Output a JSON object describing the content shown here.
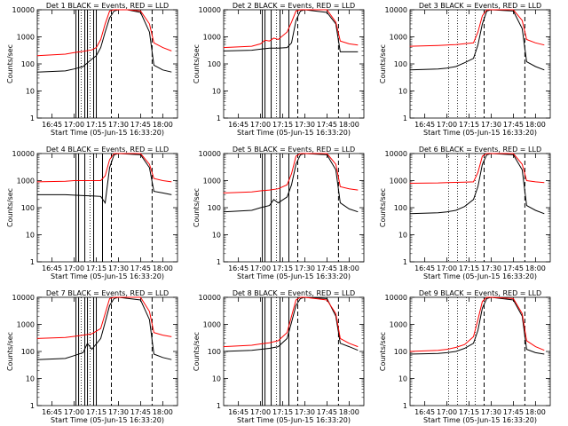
{
  "chart_data": [
    {
      "type": "line",
      "title": "Det 1   BLACK = Events, RED = LLD",
      "xlabel": "Start Time (05-Jun-15 16:33:20)",
      "ylabel": "Counts/sec",
      "yscale": "log",
      "ylim": [
        1,
        10000
      ],
      "xlim": [
        "16:35",
        "18:10"
      ],
      "x_ticks": [
        "16:45",
        "17:00",
        "17:15",
        "17:30",
        "17:45",
        "18:00"
      ],
      "y_ticks": [
        "1",
        "10",
        "100",
        "1000",
        "10000"
      ],
      "series": [
        {
          "name": "Events",
          "color": "#000000",
          "x": [
            16.58,
            16.9,
            17.0,
            17.1,
            17.2,
            17.25,
            17.3,
            17.35,
            17.4,
            17.45,
            17.5,
            17.55,
            17.6,
            17.75,
            17.85,
            17.9,
            18.0,
            18.1
          ],
          "values": [
            50,
            55,
            65,
            80,
            150,
            200,
            400,
            1500,
            5000,
            9000,
            10000,
            10000,
            10000,
            8000,
            1500,
            90,
            60,
            50
          ]
        },
        {
          "name": "LLD",
          "color": "#ff0000",
          "x": [
            16.58,
            16.9,
            17.0,
            17.1,
            17.2,
            17.25,
            17.3,
            17.35,
            17.4,
            17.45,
            17.5,
            17.55,
            17.6,
            17.75,
            17.85,
            17.9,
            18.0,
            18.1
          ],
          "values": [
            200,
            230,
            260,
            290,
            330,
            400,
            800,
            3000,
            9000,
            10000,
            10000,
            10000,
            10000,
            9000,
            3000,
            600,
            400,
            300
          ]
        }
      ],
      "solid_vlines": [
        17.02,
        17.05,
        17.12,
        17.15,
        17.22,
        17.25
      ],
      "dashed_vlines": [
        17.42,
        17.88
      ],
      "dotted_vlines": [
        17.08,
        17.18
      ]
    },
    {
      "type": "line",
      "title": "Det 2   BLACK = Events, RED = LLD",
      "xlabel": "Start Time (05-Jun-15 16:33:20)",
      "ylabel": "Counts/sec",
      "yscale": "log",
      "ylim": [
        1,
        10000
      ],
      "xlim": [
        "16:35",
        "18:10"
      ],
      "x_ticks": [
        "16:45",
        "17:00",
        "17:15",
        "17:30",
        "17:45",
        "18:00"
      ],
      "y_ticks": [
        "1",
        "10",
        "100",
        "1000",
        "10000"
      ],
      "series": [
        {
          "name": "Events",
          "color": "#000000",
          "x": [
            16.58,
            16.9,
            17.0,
            17.1,
            17.2,
            17.3,
            17.35,
            17.4,
            17.45,
            17.5,
            17.75,
            17.85,
            17.9,
            18.0,
            18.1
          ],
          "values": [
            300,
            320,
            350,
            380,
            380,
            400,
            600,
            4000,
            9000,
            10000,
            8000,
            3000,
            280,
            280,
            280
          ]
        },
        {
          "name": "LLD",
          "color": "#ff0000",
          "x": [
            16.58,
            16.9,
            17.0,
            17.05,
            17.1,
            17.15,
            17.2,
            17.3,
            17.35,
            17.4,
            17.45,
            17.5,
            17.75,
            17.85,
            17.9,
            18.0,
            18.1
          ],
          "values": [
            400,
            450,
            550,
            750,
            700,
            900,
            800,
            1500,
            3500,
            9000,
            10000,
            10000,
            10000,
            3500,
            700,
            550,
            500
          ]
        }
      ],
      "solid_vlines": [
        17.02,
        17.05,
        17.12,
        17.22,
        17.32
      ],
      "dashed_vlines": [
        17.42,
        17.88
      ],
      "dotted_vlines": [
        17.18
      ]
    },
    {
      "type": "line",
      "title": "Det 3   BLACK = Events, RED = LLD",
      "xlabel": "Start Time (05-Jun-15 16:33:20)",
      "ylabel": "Counts/sec",
      "yscale": "log",
      "ylim": [
        1,
        10000
      ],
      "xlim": [
        "16:35",
        "18:10"
      ],
      "x_ticks": [
        "16:45",
        "17:00",
        "17:15",
        "17:30",
        "17:45",
        "18:00"
      ],
      "y_ticks": [
        "1",
        "10",
        "100",
        "1000",
        "10000"
      ],
      "series": [
        {
          "name": "Events",
          "color": "#000000",
          "x": [
            16.58,
            16.9,
            17.0,
            17.1,
            17.2,
            17.3,
            17.35,
            17.4,
            17.45,
            17.5,
            17.75,
            17.85,
            17.9,
            18.0,
            18.1
          ],
          "values": [
            60,
            65,
            70,
            80,
            110,
            160,
            500,
            3000,
            9000,
            10000,
            9000,
            2000,
            120,
            80,
            60
          ]
        },
        {
          "name": "LLD",
          "color": "#ff0000",
          "x": [
            16.58,
            16.9,
            17.0,
            17.1,
            17.2,
            17.3,
            17.35,
            17.4,
            17.45,
            17.5,
            17.75,
            17.85,
            17.9,
            18.0,
            18.1
          ],
          "values": [
            450,
            480,
            500,
            520,
            560,
            600,
            1500,
            6000,
            10000,
            10000,
            10000,
            4000,
            800,
            600,
            500
          ]
        }
      ],
      "solid_vlines": [],
      "dashed_vlines": [
        17.42,
        17.88
      ],
      "dotted_vlines": [
        17.02,
        17.12,
        17.22,
        17.32
      ]
    },
    {
      "type": "line",
      "title": "Det 4   BLACK = Events, RED = LLD",
      "xlabel": "Start Time (05-Jun-15 16:33:20)",
      "ylabel": "Counts/sec",
      "yscale": "log",
      "ylim": [
        1,
        10000
      ],
      "xlim": [
        "16:35",
        "18:10"
      ],
      "x_ticks": [
        "16:45",
        "17:00",
        "17:15",
        "17:30",
        "17:45",
        "18:00"
      ],
      "y_ticks": [
        "1",
        "10",
        "100",
        "1000",
        "10000"
      ],
      "series": [
        {
          "name": "Events",
          "color": "#000000",
          "x": [
            16.58,
            16.9,
            17.0,
            17.1,
            17.2,
            17.3,
            17.35,
            17.4,
            17.45,
            17.5,
            17.75,
            17.85,
            17.9,
            18.0,
            18.1
          ],
          "values": [
            300,
            300,
            290,
            280,
            270,
            260,
            150,
            3000,
            9000,
            10000,
            9000,
            3000,
            400,
            350,
            300
          ]
        },
        {
          "name": "LLD",
          "color": "#ff0000",
          "x": [
            16.58,
            16.9,
            17.0,
            17.1,
            17.2,
            17.3,
            17.35,
            17.4,
            17.45,
            17.5,
            17.75,
            17.85,
            17.9,
            18.0,
            18.1
          ],
          "values": [
            900,
            950,
            1000,
            1000,
            1000,
            1000,
            1500,
            6000,
            10000,
            10000,
            10000,
            4000,
            1200,
            1000,
            900
          ]
        }
      ],
      "solid_vlines": [
        17.02,
        17.05,
        17.12,
        17.22,
        17.32
      ],
      "dashed_vlines": [
        17.42,
        17.88
      ],
      "dotted_vlines": [
        17.18
      ]
    },
    {
      "type": "line",
      "title": "Det 5   BLACK = Events, RED = LLD",
      "xlabel": "Start Time (05-Jun-15 16:33:20)",
      "ylabel": "Counts/sec",
      "yscale": "log",
      "ylim": [
        1,
        10000
      ],
      "xlim": [
        "16:35",
        "18:10"
      ],
      "x_ticks": [
        "16:45",
        "17:00",
        "17:15",
        "17:30",
        "17:45",
        "18:00"
      ],
      "y_ticks": [
        "1",
        "10",
        "100",
        "1000",
        "10000"
      ],
      "series": [
        {
          "name": "Events",
          "color": "#000000",
          "x": [
            16.58,
            16.9,
            17.0,
            17.1,
            17.15,
            17.2,
            17.3,
            17.35,
            17.4,
            17.45,
            17.5,
            17.75,
            17.85,
            17.9,
            18.0,
            18.1
          ],
          "values": [
            70,
            80,
            100,
            120,
            200,
            150,
            250,
            700,
            4000,
            9000,
            10000,
            9000,
            2500,
            150,
            90,
            70
          ]
        },
        {
          "name": "LLD",
          "color": "#ff0000",
          "x": [
            16.58,
            16.9,
            17.0,
            17.1,
            17.2,
            17.3,
            17.35,
            17.4,
            17.45,
            17.5,
            17.75,
            17.85,
            17.9,
            18.0,
            18.1
          ],
          "values": [
            350,
            380,
            420,
            450,
            500,
            700,
            1800,
            8000,
            10000,
            10000,
            10000,
            4000,
            600,
            500,
            450
          ]
        }
      ],
      "solid_vlines": [
        17.02,
        17.05,
        17.12,
        17.22,
        17.32
      ],
      "dashed_vlines": [
        17.42,
        17.88
      ],
      "dotted_vlines": [
        17.18
      ]
    },
    {
      "type": "line",
      "title": "Det 6   BLACK = Events, RED = LLD",
      "xlabel": "Start Time (05-Jun-15 16:33:20)",
      "ylabel": "Counts/sec",
      "yscale": "log",
      "ylim": [
        1,
        10000
      ],
      "xlim": [
        "16:35",
        "18:10"
      ],
      "x_ticks": [
        "16:45",
        "17:00",
        "17:15",
        "17:30",
        "17:45",
        "18:00"
      ],
      "y_ticks": [
        "1",
        "10",
        "100",
        "1000",
        "10000"
      ],
      "series": [
        {
          "name": "Events",
          "color": "#000000",
          "x": [
            16.58,
            16.9,
            17.0,
            17.1,
            17.2,
            17.3,
            17.35,
            17.4,
            17.45,
            17.5,
            17.75,
            17.85,
            17.9,
            18.0,
            18.1
          ],
          "values": [
            60,
            65,
            70,
            80,
            110,
            200,
            600,
            4000,
            9000,
            10000,
            9000,
            2500,
            120,
            80,
            60
          ]
        },
        {
          "name": "LLD",
          "color": "#ff0000",
          "x": [
            16.58,
            16.9,
            17.0,
            17.1,
            17.2,
            17.3,
            17.35,
            17.4,
            17.45,
            17.5,
            17.75,
            17.85,
            17.9,
            18.0,
            18.1
          ],
          "values": [
            800,
            820,
            850,
            860,
            880,
            900,
            2000,
            8000,
            10000,
            10000,
            10000,
            4000,
            1000,
            900,
            850
          ]
        }
      ],
      "solid_vlines": [],
      "dashed_vlines": [
        17.42,
        17.88
      ],
      "dotted_vlines": [
        17.02,
        17.12,
        17.22,
        17.32
      ]
    },
    {
      "type": "line",
      "title": "Det 7   BLACK = Events, RED = LLD",
      "xlabel": "Start Time (05-Jun-15 16:33:20)",
      "ylabel": "Counts/sec",
      "yscale": "log",
      "ylim": [
        1,
        10000
      ],
      "xlim": [
        "16:35",
        "18:10"
      ],
      "x_ticks": [
        "16:45",
        "17:00",
        "17:15",
        "17:30",
        "17:45",
        "18:00"
      ],
      "y_ticks": [
        "1",
        "10",
        "100",
        "1000",
        "10000"
      ],
      "series": [
        {
          "name": "Events",
          "color": "#000000",
          "x": [
            16.58,
            16.9,
            17.0,
            17.1,
            17.15,
            17.2,
            17.3,
            17.35,
            17.4,
            17.45,
            17.5,
            17.75,
            17.85,
            17.9,
            18.0,
            18.1
          ],
          "values": [
            50,
            55,
            70,
            90,
            200,
            120,
            300,
            1200,
            5000,
            9000,
            10000,
            8000,
            1500,
            80,
            60,
            50
          ]
        },
        {
          "name": "LLD",
          "color": "#ff0000",
          "x": [
            16.58,
            16.9,
            17.0,
            17.1,
            17.2,
            17.3,
            17.35,
            17.4,
            17.45,
            17.5,
            17.75,
            17.85,
            17.9,
            18.0,
            18.1
          ],
          "values": [
            300,
            330,
            360,
            400,
            450,
            700,
            2500,
            9000,
            10000,
            10000,
            10000,
            3000,
            500,
            400,
            350
          ]
        }
      ],
      "solid_vlines": [
        17.02,
        17.05,
        17.12,
        17.15,
        17.22,
        17.25
      ],
      "dashed_vlines": [
        17.42,
        17.88
      ],
      "dotted_vlines": [
        17.08,
        17.18
      ]
    },
    {
      "type": "line",
      "title": "Det 8   BLACK = Events, RED = LLD",
      "xlabel": "Start Time (05-Jun-15 16:33:20)",
      "ylabel": "Counts/sec",
      "yscale": "log",
      "ylim": [
        1,
        10000
      ],
      "xlim": [
        "16:35",
        "18:10"
      ],
      "x_ticks": [
        "16:45",
        "17:00",
        "17:15",
        "17:30",
        "17:45",
        "18:00"
      ],
      "y_ticks": [
        "1",
        "10",
        "100",
        "1000",
        "10000"
      ],
      "series": [
        {
          "name": "Events",
          "color": "#000000",
          "x": [
            16.58,
            16.9,
            17.0,
            17.1,
            17.2,
            17.3,
            17.35,
            17.4,
            17.45,
            17.5,
            17.75,
            17.85,
            17.9,
            18.0,
            18.1
          ],
          "values": [
            100,
            110,
            120,
            130,
            150,
            300,
            1200,
            5000,
            9000,
            10000,
            9000,
            2000,
            200,
            150,
            110
          ]
        },
        {
          "name": "LLD",
          "color": "#ff0000",
          "x": [
            16.58,
            16.9,
            17.0,
            17.1,
            17.2,
            17.3,
            17.35,
            17.4,
            17.45,
            17.5,
            17.75,
            17.85,
            17.9,
            18.0,
            18.1
          ],
          "values": [
            150,
            170,
            190,
            210,
            250,
            500,
            2000,
            8000,
            10000,
            10000,
            8000,
            2500,
            300,
            200,
            150
          ]
        }
      ],
      "solid_vlines": [
        17.02,
        17.05,
        17.12,
        17.22,
        17.32
      ],
      "dashed_vlines": [
        17.42,
        17.88
      ],
      "dotted_vlines": [
        17.18
      ]
    },
    {
      "type": "line",
      "title": "Det 9   BLACK = Events, RED = LLD",
      "xlabel": "Start Time (05-Jun-15 16:33:20)",
      "ylabel": "Counts/sec",
      "yscale": "log",
      "ylim": [
        1,
        10000
      ],
      "xlim": [
        "16:35",
        "18:10"
      ],
      "x_ticks": [
        "16:45",
        "17:00",
        "17:15",
        "17:30",
        "17:45",
        "18:00"
      ],
      "y_ticks": [
        "1",
        "10",
        "100",
        "1000",
        "10000"
      ],
      "series": [
        {
          "name": "Events",
          "color": "#000000",
          "x": [
            16.58,
            16.9,
            17.0,
            17.1,
            17.2,
            17.3,
            17.35,
            17.4,
            17.45,
            17.5,
            17.75,
            17.85,
            17.9,
            18.0,
            18.1
          ],
          "values": [
            80,
            85,
            90,
            100,
            130,
            200,
            600,
            4000,
            9000,
            10000,
            8000,
            2000,
            120,
            90,
            80
          ]
        },
        {
          "name": "LLD",
          "color": "#ff0000",
          "x": [
            16.58,
            16.9,
            17.0,
            17.1,
            17.2,
            17.3,
            17.35,
            17.4,
            17.45,
            17.5,
            17.75,
            17.85,
            17.9,
            18.0,
            18.1
          ],
          "values": [
            100,
            110,
            120,
            140,
            180,
            350,
            1500,
            7000,
            10000,
            10000,
            9000,
            2500,
            250,
            150,
            110
          ]
        }
      ],
      "solid_vlines": [],
      "dashed_vlines": [
        17.42,
        17.88
      ],
      "dotted_vlines": [
        17.02,
        17.12,
        17.22,
        17.32
      ]
    }
  ]
}
